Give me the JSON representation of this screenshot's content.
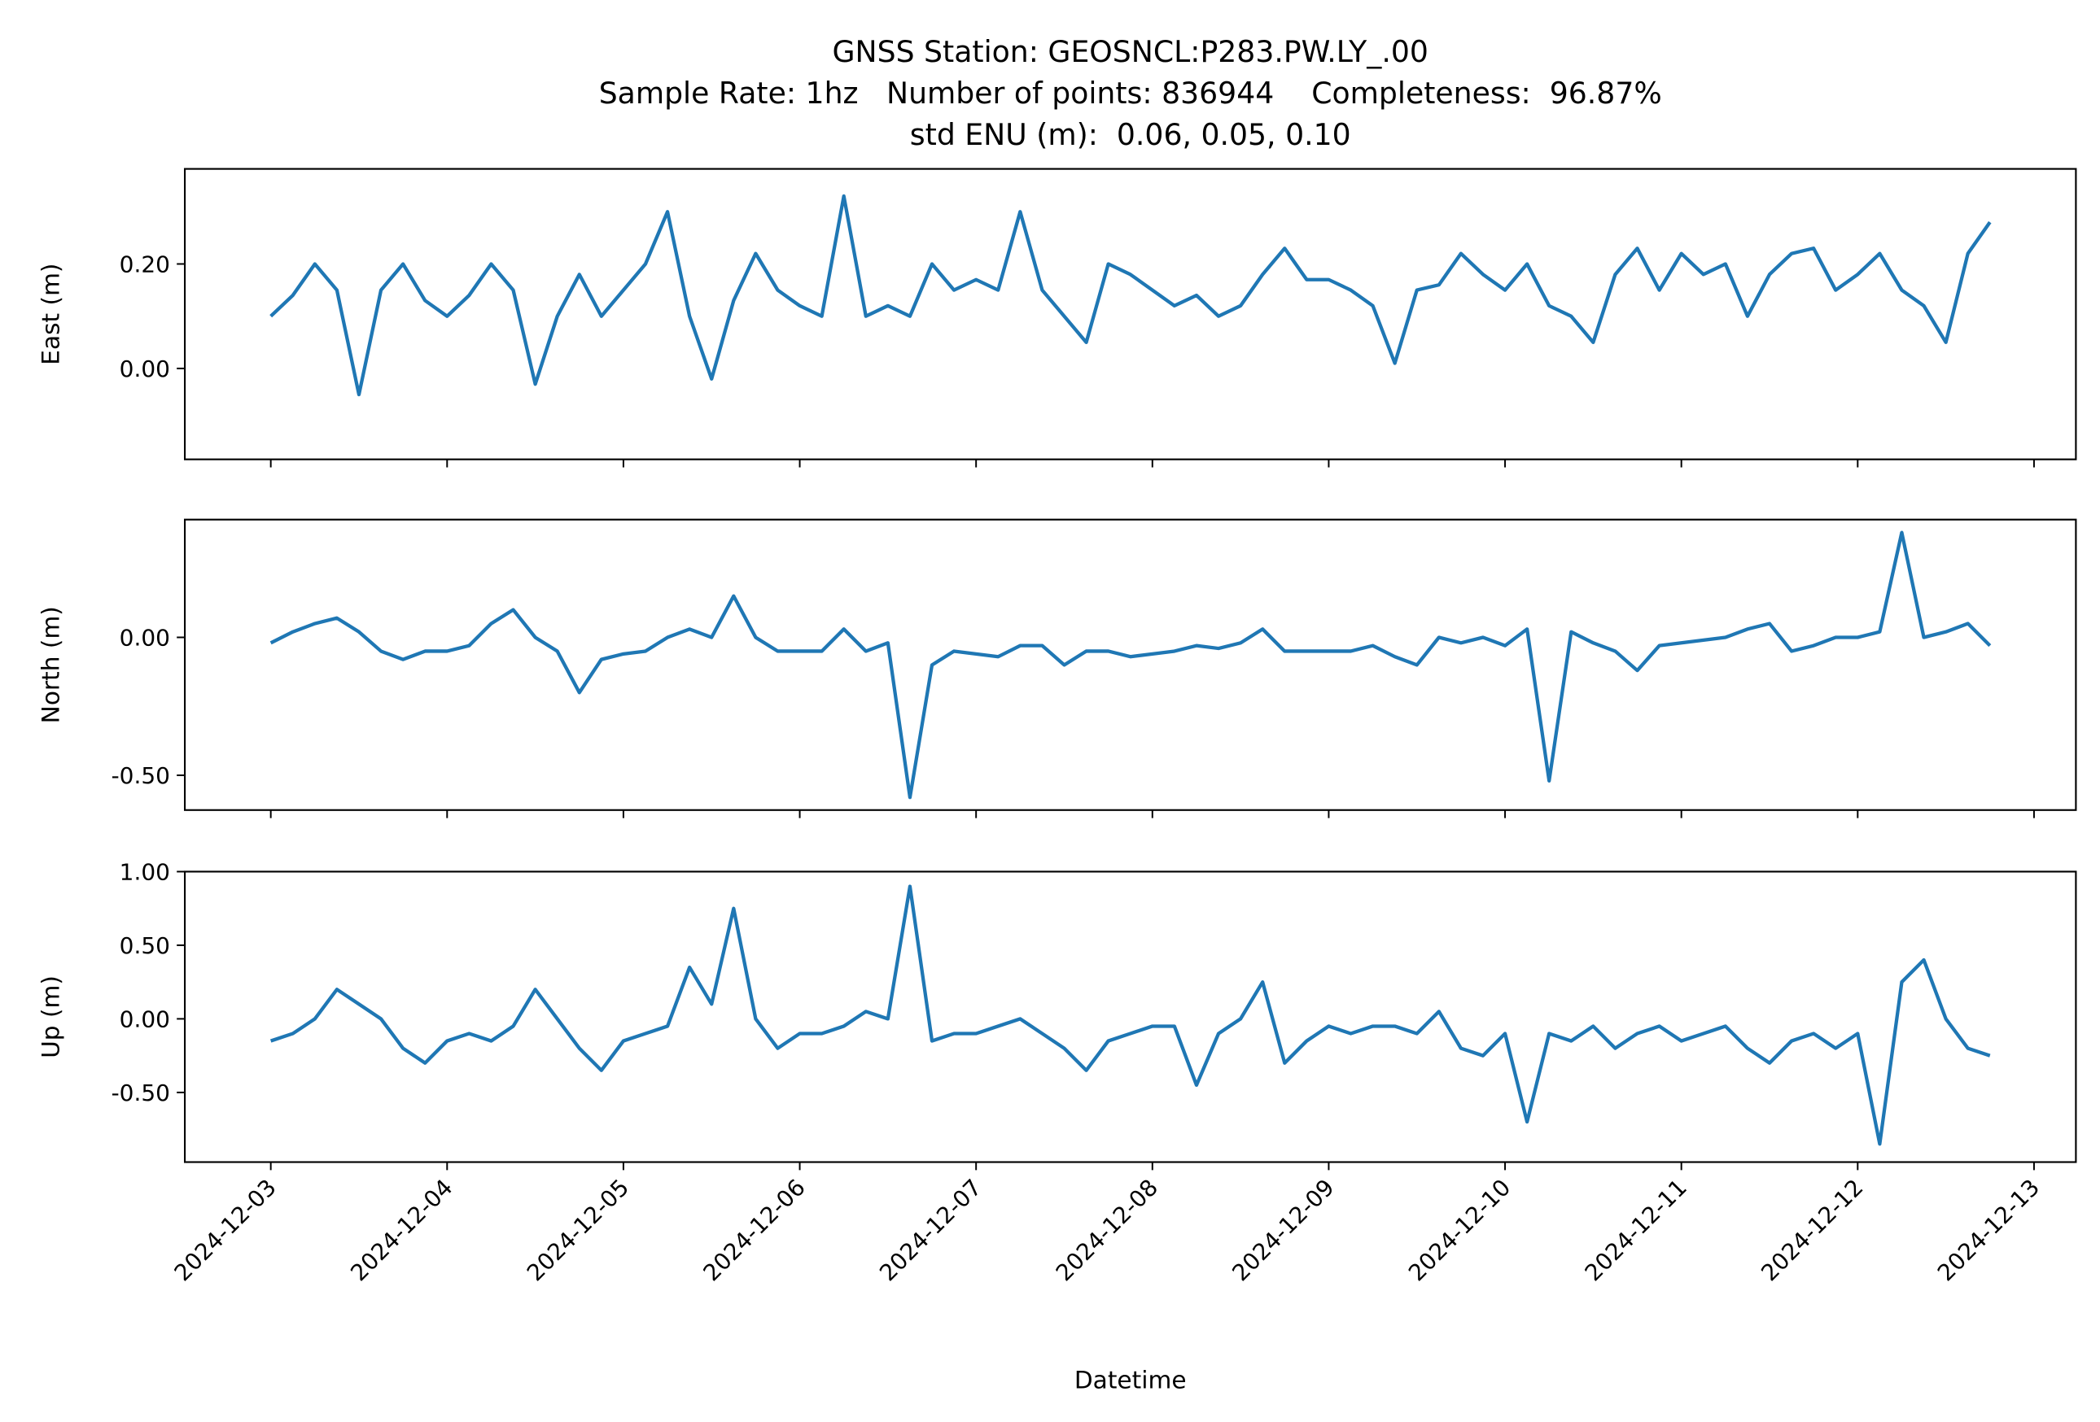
{
  "title": [
    "GNSS Station: GEOSNCL:P283.PW.LY_.00",
    "Sample Rate: 1hz   Number of points: 836944    Completeness:  96.87%",
    "std ENU (m):  0.06, 0.05, 0.10"
  ],
  "chart_data": [
    {
      "type": "line",
      "ylabel": "East (m)",
      "color": "#1f77b4",
      "xlim": [
        "2024-12-02 12:18",
        "2024-12-13 05:42"
      ],
      "ylim": [
        -0.174,
        0.382
      ],
      "yticks": [
        {
          "value": 0,
          "label": "0.00"
        },
        {
          "value": 0.2,
          "label": "0.20"
        }
      ],
      "x": [
        "2024-12-03 00:00",
        "2024-12-03 03:00",
        "2024-12-03 06:00",
        "2024-12-03 09:00",
        "2024-12-03 12:00",
        "2024-12-03 15:00",
        "2024-12-03 18:00",
        "2024-12-03 21:00",
        "2024-12-04 00:00",
        "2024-12-04 03:00",
        "2024-12-04 06:00",
        "2024-12-04 09:00",
        "2024-12-04 12:00",
        "2024-12-04 15:00",
        "2024-12-04 18:00",
        "2024-12-04 21:00",
        "2024-12-05 00:00",
        "2024-12-05 03:00",
        "2024-12-05 06:00",
        "2024-12-05 09:00",
        "2024-12-05 12:00",
        "2024-12-05 15:00",
        "2024-12-05 18:00",
        "2024-12-05 21:00",
        "2024-12-06 00:00",
        "2024-12-06 03:00",
        "2024-12-06 06:00",
        "2024-12-06 09:00",
        "2024-12-06 12:00",
        "2024-12-06 15:00",
        "2024-12-06 18:00",
        "2024-12-06 21:00",
        "2024-12-07 00:00",
        "2024-12-07 03:00",
        "2024-12-07 06:00",
        "2024-12-07 09:00",
        "2024-12-07 12:00",
        "2024-12-07 15:00",
        "2024-12-07 18:00",
        "2024-12-07 21:00",
        "2024-12-08 00:00",
        "2024-12-08 03:00",
        "2024-12-08 06:00",
        "2024-12-08 09:00",
        "2024-12-08 12:00",
        "2024-12-08 15:00",
        "2024-12-08 18:00",
        "2024-12-08 21:00",
        "2024-12-09 00:00",
        "2024-12-09 03:00",
        "2024-12-09 06:00",
        "2024-12-09 09:00",
        "2024-12-09 12:00",
        "2024-12-09 15:00",
        "2024-12-09 18:00",
        "2024-12-09 21:00",
        "2024-12-10 00:00",
        "2024-12-10 03:00",
        "2024-12-10 06:00",
        "2024-12-10 09:00",
        "2024-12-10 12:00",
        "2024-12-10 15:00",
        "2024-12-10 18:00",
        "2024-12-10 21:00",
        "2024-12-11 00:00",
        "2024-12-11 03:00",
        "2024-12-11 06:00",
        "2024-12-11 09:00",
        "2024-12-11 12:00",
        "2024-12-11 15:00",
        "2024-12-11 18:00",
        "2024-12-11 21:00",
        "2024-12-12 00:00",
        "2024-12-12 03:00",
        "2024-12-12 06:00",
        "2024-12-12 09:00",
        "2024-12-12 12:00",
        "2024-12-12 15:00",
        "2024-12-12 18:00"
      ],
      "values": [
        0.1,
        0.14,
        0.2,
        0.15,
        -0.05,
        0.15,
        0.2,
        0.13,
        0.1,
        0.14,
        0.2,
        0.15,
        -0.03,
        0.1,
        0.18,
        0.1,
        0.15,
        0.2,
        0.3,
        0.1,
        -0.02,
        0.13,
        0.22,
        0.15,
        0.12,
        0.1,
        0.33,
        0.1,
        0.12,
        0.1,
        0.2,
        0.15,
        0.17,
        0.15,
        0.3,
        0.15,
        0.1,
        0.05,
        0.2,
        0.18,
        0.15,
        0.12,
        0.14,
        0.1,
        0.12,
        0.18,
        0.23,
        0.17,
        0.17,
        0.15,
        0.12,
        0.01,
        0.15,
        0.16,
        0.22,
        0.18,
        0.15,
        0.2,
        0.12,
        0.1,
        0.05,
        0.18,
        0.23,
        0.15,
        0.22,
        0.18,
        0.2,
        0.1,
        0.18,
        0.22,
        0.23,
        0.15,
        0.18,
        0.22,
        0.15,
        0.12,
        0.05,
        0.22,
        0.28
      ]
    },
    {
      "type": "line",
      "ylabel": "North (m)",
      "color": "#1f77b4",
      "xlim": [
        "2024-12-02 12:18",
        "2024-12-13 05:42"
      ],
      "ylim": [
        -0.626,
        0.427
      ],
      "yticks": [
        {
          "value": -0.5,
          "label": "-0.50"
        },
        {
          "value": 0,
          "label": "0.00"
        }
      ],
      "x": [
        "2024-12-03 00:00",
        "2024-12-03 03:00",
        "2024-12-03 06:00",
        "2024-12-03 09:00",
        "2024-12-03 12:00",
        "2024-12-03 15:00",
        "2024-12-03 18:00",
        "2024-12-03 21:00",
        "2024-12-04 00:00",
        "2024-12-04 03:00",
        "2024-12-04 06:00",
        "2024-12-04 09:00",
        "2024-12-04 12:00",
        "2024-12-04 15:00",
        "2024-12-04 18:00",
        "2024-12-04 21:00",
        "2024-12-05 00:00",
        "2024-12-05 03:00",
        "2024-12-05 06:00",
        "2024-12-05 09:00",
        "2024-12-05 12:00",
        "2024-12-05 15:00",
        "2024-12-05 18:00",
        "2024-12-05 21:00",
        "2024-12-06 00:00",
        "2024-12-06 03:00",
        "2024-12-06 06:00",
        "2024-12-06 09:00",
        "2024-12-06 12:00",
        "2024-12-06 15:00",
        "2024-12-06 18:00",
        "2024-12-06 21:00",
        "2024-12-07 00:00",
        "2024-12-07 03:00",
        "2024-12-07 06:00",
        "2024-12-07 09:00",
        "2024-12-07 12:00",
        "2024-12-07 15:00",
        "2024-12-07 18:00",
        "2024-12-07 21:00",
        "2024-12-08 00:00",
        "2024-12-08 03:00",
        "2024-12-08 06:00",
        "2024-12-08 09:00",
        "2024-12-08 12:00",
        "2024-12-08 15:00",
        "2024-12-08 18:00",
        "2024-12-08 21:00",
        "2024-12-09 00:00",
        "2024-12-09 03:00",
        "2024-12-09 06:00",
        "2024-12-09 09:00",
        "2024-12-09 12:00",
        "2024-12-09 15:00",
        "2024-12-09 18:00",
        "2024-12-09 21:00",
        "2024-12-10 00:00",
        "2024-12-10 03:00",
        "2024-12-10 06:00",
        "2024-12-10 09:00",
        "2024-12-10 12:00",
        "2024-12-10 15:00",
        "2024-12-10 18:00",
        "2024-12-10 21:00",
        "2024-12-11 00:00",
        "2024-12-11 03:00",
        "2024-12-11 06:00",
        "2024-12-11 09:00",
        "2024-12-11 12:00",
        "2024-12-11 15:00",
        "2024-12-11 18:00",
        "2024-12-11 21:00",
        "2024-12-12 00:00",
        "2024-12-12 03:00",
        "2024-12-12 06:00",
        "2024-12-12 09:00",
        "2024-12-12 12:00",
        "2024-12-12 15:00",
        "2024-12-12 18:00"
      ],
      "values": [
        -0.02,
        0.02,
        0.05,
        0.07,
        0.02,
        -0.05,
        -0.08,
        -0.05,
        -0.05,
        -0.03,
        0.05,
        0.1,
        0.0,
        -0.05,
        -0.2,
        -0.08,
        -0.06,
        -0.05,
        0.0,
        0.03,
        0.0,
        0.15,
        0.0,
        -0.05,
        -0.05,
        -0.05,
        0.03,
        -0.05,
        -0.02,
        -0.58,
        -0.1,
        -0.05,
        -0.06,
        -0.07,
        -0.03,
        -0.03,
        -0.1,
        -0.05,
        -0.05,
        -0.07,
        -0.06,
        -0.05,
        -0.03,
        -0.04,
        -0.02,
        0.03,
        -0.05,
        -0.05,
        -0.05,
        -0.05,
        -0.03,
        -0.07,
        -0.1,
        0.0,
        -0.02,
        0.0,
        -0.03,
        0.03,
        -0.52,
        0.02,
        -0.02,
        -0.05,
        -0.12,
        -0.03,
        -0.02,
        -0.01,
        0.0,
        0.03,
        0.05,
        -0.05,
        -0.03,
        0.0,
        0.0,
        0.02,
        0.38,
        0.0,
        0.02,
        0.05,
        -0.03
      ]
    },
    {
      "type": "line",
      "ylabel": "Up (m)",
      "xlabel": "Datetime",
      "color": "#1f77b4",
      "xlim": [
        "2024-12-02 12:18",
        "2024-12-13 05:42"
      ],
      "ylim": [
        -0.973,
        1.0
      ],
      "yticks": [
        {
          "value": -0.5,
          "label": "-0.50"
        },
        {
          "value": 0,
          "label": "0.00"
        },
        {
          "value": 0.5,
          "label": "0.50"
        },
        {
          "value": 1.0,
          "label": "1.00"
        }
      ],
      "xticks": [
        "2024-12-03",
        "2024-12-04",
        "2024-12-05",
        "2024-12-06",
        "2024-12-07",
        "2024-12-08",
        "2024-12-09",
        "2024-12-10",
        "2024-12-11",
        "2024-12-12",
        "2024-12-13"
      ],
      "x": [
        "2024-12-03 00:00",
        "2024-12-03 03:00",
        "2024-12-03 06:00",
        "2024-12-03 09:00",
        "2024-12-03 12:00",
        "2024-12-03 15:00",
        "2024-12-03 18:00",
        "2024-12-03 21:00",
        "2024-12-04 00:00",
        "2024-12-04 03:00",
        "2024-12-04 06:00",
        "2024-12-04 09:00",
        "2024-12-04 12:00",
        "2024-12-04 15:00",
        "2024-12-04 18:00",
        "2024-12-04 21:00",
        "2024-12-05 00:00",
        "2024-12-05 03:00",
        "2024-12-05 06:00",
        "2024-12-05 09:00",
        "2024-12-05 12:00",
        "2024-12-05 15:00",
        "2024-12-05 18:00",
        "2024-12-05 21:00",
        "2024-12-06 00:00",
        "2024-12-06 03:00",
        "2024-12-06 06:00",
        "2024-12-06 09:00",
        "2024-12-06 12:00",
        "2024-12-06 15:00",
        "2024-12-06 18:00",
        "2024-12-06 21:00",
        "2024-12-07 00:00",
        "2024-12-07 03:00",
        "2024-12-07 06:00",
        "2024-12-07 09:00",
        "2024-12-07 12:00",
        "2024-12-07 15:00",
        "2024-12-07 18:00",
        "2024-12-07 21:00",
        "2024-12-08 00:00",
        "2024-12-08 03:00",
        "2024-12-08 06:00",
        "2024-12-08 09:00",
        "2024-12-08 12:00",
        "2024-12-08 15:00",
        "2024-12-08 18:00",
        "2024-12-08 21:00",
        "2024-12-09 00:00",
        "2024-12-09 03:00",
        "2024-12-09 06:00",
        "2024-12-09 09:00",
        "2024-12-09 12:00",
        "2024-12-09 15:00",
        "2024-12-09 18:00",
        "2024-12-09 21:00",
        "2024-12-10 00:00",
        "2024-12-10 03:00",
        "2024-12-10 06:00",
        "2024-12-10 09:00",
        "2024-12-10 12:00",
        "2024-12-10 15:00",
        "2024-12-10 18:00",
        "2024-12-10 21:00",
        "2024-12-11 00:00",
        "2024-12-11 03:00",
        "2024-12-11 06:00",
        "2024-12-11 09:00",
        "2024-12-11 12:00",
        "2024-12-11 15:00",
        "2024-12-11 18:00",
        "2024-12-11 21:00",
        "2024-12-12 00:00",
        "2024-12-12 03:00",
        "2024-12-12 06:00",
        "2024-12-12 09:00",
        "2024-12-12 12:00",
        "2024-12-12 15:00",
        "2024-12-12 18:00"
      ],
      "values": [
        -0.15,
        -0.1,
        0.0,
        0.2,
        0.1,
        0.0,
        -0.2,
        -0.3,
        -0.15,
        -0.1,
        -0.15,
        -0.05,
        0.2,
        0.0,
        -0.2,
        -0.35,
        -0.15,
        -0.1,
        -0.05,
        0.35,
        0.1,
        0.75,
        0.0,
        -0.2,
        -0.1,
        -0.1,
        -0.05,
        0.05,
        0.0,
        0.9,
        -0.15,
        -0.1,
        -0.1,
        -0.05,
        0.0,
        -0.1,
        -0.2,
        -0.35,
        -0.15,
        -0.1,
        -0.05,
        -0.05,
        -0.45,
        -0.1,
        0.0,
        0.25,
        -0.3,
        -0.15,
        -0.05,
        -0.1,
        -0.05,
        -0.05,
        -0.1,
        0.05,
        -0.2,
        -0.25,
        -0.1,
        -0.7,
        -0.1,
        -0.15,
        -0.05,
        -0.2,
        -0.1,
        -0.05,
        -0.15,
        -0.1,
        -0.05,
        -0.2,
        -0.3,
        -0.15,
        -0.1,
        -0.2,
        -0.1,
        -0.85,
        0.25,
        0.4,
        0.0,
        -0.2,
        -0.25
      ]
    }
  ]
}
